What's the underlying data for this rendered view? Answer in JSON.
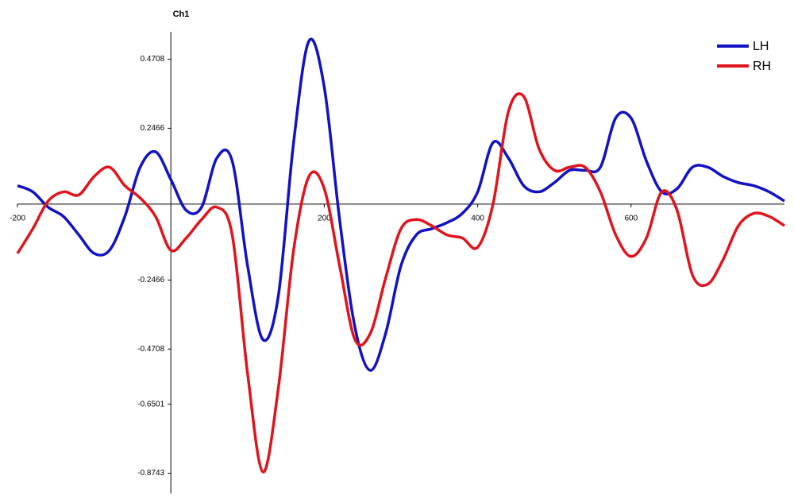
{
  "chart_data": {
    "type": "line",
    "title": "Ch1",
    "x": [
      -200,
      -180,
      -160,
      -140,
      -120,
      -100,
      -80,
      -60,
      -40,
      -20,
      0,
      20,
      40,
      60,
      80,
      100,
      120,
      140,
      160,
      180,
      200,
      220,
      240,
      260,
      280,
      300,
      320,
      340,
      360,
      380,
      400,
      420,
      440,
      460,
      480,
      500,
      520,
      540,
      560,
      580,
      600,
      620,
      640,
      660,
      680,
      700,
      720,
      740,
      760,
      780,
      800
    ],
    "series": [
      {
        "name": "LH",
        "color": "#1212c4",
        "values": [
          0.06,
          0.04,
          -0.01,
          -0.04,
          -0.1,
          -0.16,
          -0.15,
          -0.04,
          0.12,
          0.17,
          0.08,
          -0.02,
          -0.01,
          0.15,
          0.14,
          -0.2,
          -0.44,
          -0.3,
          0.2,
          0.53,
          0.38,
          -0.05,
          -0.4,
          -0.54,
          -0.42,
          -0.2,
          -0.1,
          -0.08,
          -0.06,
          -0.03,
          0.04,
          0.2,
          0.15,
          0.06,
          0.04,
          0.07,
          0.11,
          0.11,
          0.12,
          0.28,
          0.28,
          0.14,
          0.04,
          0.05,
          0.12,
          0.12,
          0.09,
          0.07,
          0.06,
          0.04,
          0.01
        ]
      },
      {
        "name": "RH",
        "color": "#e0141c",
        "values": [
          -0.16,
          -0.08,
          0.01,
          0.04,
          0.03,
          0.09,
          0.12,
          0.06,
          0.02,
          -0.04,
          -0.15,
          -0.11,
          -0.05,
          -0.01,
          -0.1,
          -0.55,
          -0.87,
          -0.6,
          -0.15,
          0.09,
          0.05,
          -0.2,
          -0.44,
          -0.42,
          -0.24,
          -0.08,
          -0.05,
          -0.07,
          -0.1,
          -0.11,
          -0.14,
          0.0,
          0.3,
          0.35,
          0.18,
          0.11,
          0.12,
          0.12,
          0.04,
          -0.1,
          -0.17,
          -0.11,
          0.04,
          -0.02,
          -0.23,
          -0.26,
          -0.18,
          -0.07,
          -0.03,
          -0.04,
          -0.07
        ]
      }
    ],
    "xlim": [
      -200,
      800
    ],
    "xticks": [
      -200,
      200,
      400,
      600
    ],
    "ylim": [
      -0.94,
      0.56
    ],
    "yticks": [
      0.4708,
      0.2466,
      -0.2466,
      -0.4708,
      -0.6501,
      -0.8743
    ],
    "legend": "top-right"
  }
}
